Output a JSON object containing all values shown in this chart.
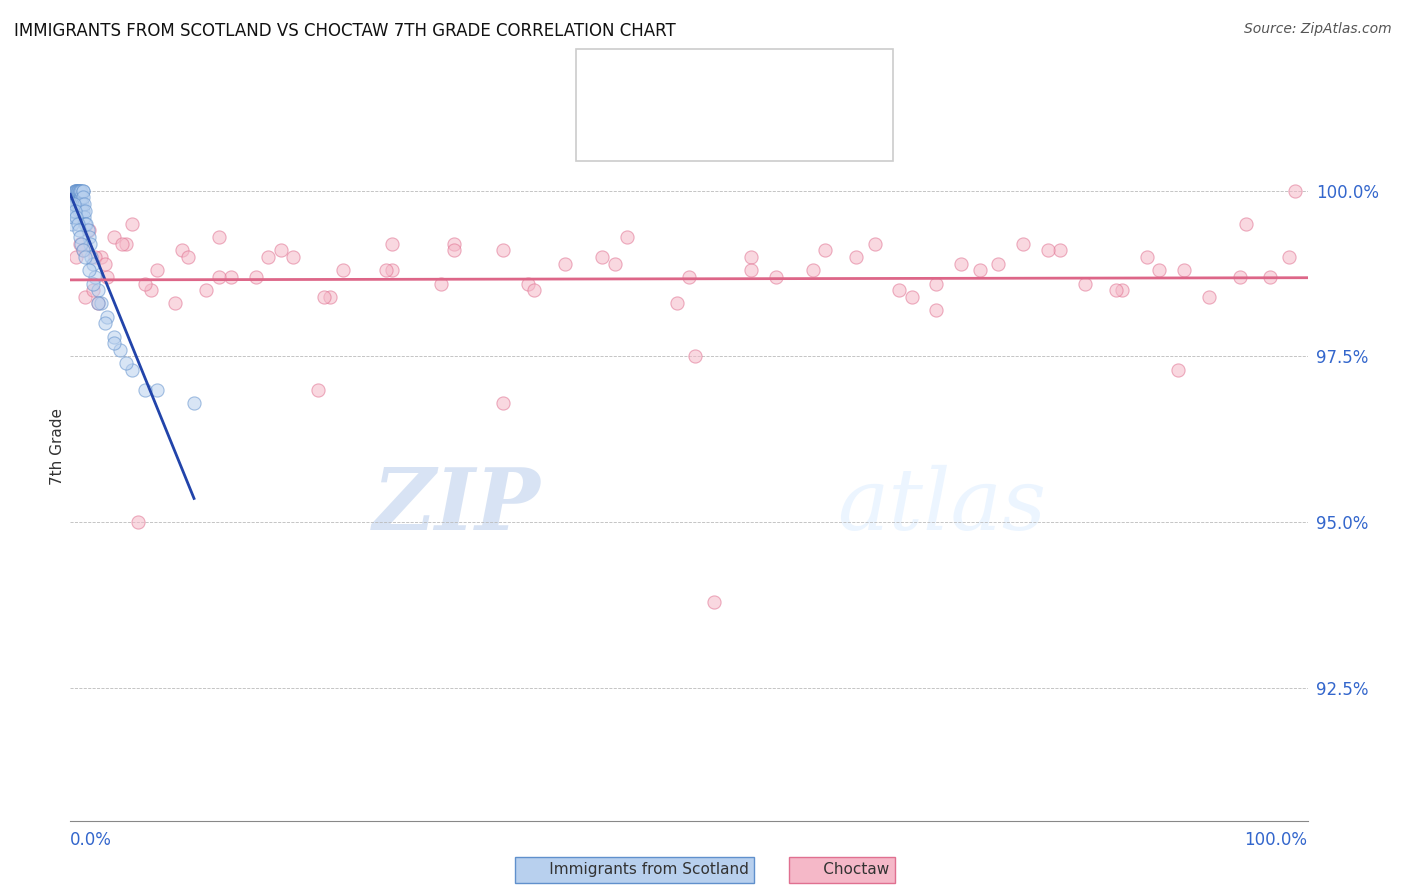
{
  "title": "IMMIGRANTS FROM SCOTLAND VS CHOCTAW 7TH GRADE CORRELATION CHART",
  "source_text": "Source: ZipAtlas.com",
  "ylabel": "7th Grade",
  "xmin": 0.0,
  "xmax": 100.0,
  "ymin": 90.5,
  "ymax": 101.8,
  "blue_color": "#b8d0ee",
  "blue_edge_color": "#6090cc",
  "pink_color": "#f5b8c8",
  "pink_edge_color": "#e07090",
  "blue_line_color": "#2244aa",
  "pink_line_color": "#dd6688",
  "ytick_vals": [
    92.5,
    95.0,
    97.5,
    100.0
  ],
  "watermark_zip": "ZIP",
  "watermark_atlas": "atlas",
  "blue_x": [
    0.15,
    0.2,
    0.25,
    0.3,
    0.35,
    0.35,
    0.4,
    0.4,
    0.45,
    0.5,
    0.5,
    0.55,
    0.6,
    0.6,
    0.65,
    0.7,
    0.7,
    0.75,
    0.8,
    0.8,
    0.85,
    0.9,
    0.9,
    0.95,
    1.0,
    1.0,
    1.0,
    1.0,
    1.1,
    1.1,
    1.2,
    1.2,
    1.3,
    1.4,
    1.5,
    1.6,
    1.7,
    1.8,
    2.0,
    2.2,
    2.5,
    3.0,
    3.5,
    4.0,
    5.0,
    7.0,
    10.0,
    0.3,
    0.4,
    0.5,
    0.6,
    0.7,
    0.8,
    0.9,
    1.0,
    1.2,
    1.5,
    1.8,
    2.2,
    2.8,
    3.5,
    4.5,
    6.0
  ],
  "blue_y": [
    99.5,
    99.6,
    99.7,
    99.8,
    100.0,
    99.9,
    100.0,
    99.8,
    100.0,
    100.0,
    99.9,
    100.0,
    100.0,
    99.8,
    100.0,
    100.0,
    99.7,
    100.0,
    100.0,
    99.8,
    99.9,
    100.0,
    99.7,
    99.8,
    100.0,
    100.0,
    99.9,
    99.7,
    99.8,
    99.6,
    99.7,
    99.5,
    99.5,
    99.4,
    99.3,
    99.2,
    99.0,
    98.9,
    98.7,
    98.5,
    98.3,
    98.1,
    97.8,
    97.6,
    97.3,
    97.0,
    96.8,
    99.8,
    99.7,
    99.6,
    99.5,
    99.4,
    99.3,
    99.2,
    99.1,
    99.0,
    98.8,
    98.6,
    98.3,
    98.0,
    97.7,
    97.4,
    97.0
  ],
  "pink_x": [
    0.8,
    1.5,
    2.5,
    3.5,
    5.0,
    7.0,
    9.0,
    12.0,
    15.0,
    18.0,
    22.0,
    26.0,
    30.0,
    35.0,
    40.0,
    45.0,
    50.0,
    55.0,
    60.0,
    65.0,
    70.0,
    75.0,
    80.0,
    85.0,
    90.0,
    95.0,
    99.0,
    1.2,
    2.0,
    3.0,
    4.5,
    6.5,
    9.5,
    13.0,
    17.0,
    21.0,
    26.0,
    31.0,
    37.0,
    43.0,
    49.0,
    55.0,
    61.0,
    67.0,
    72.0,
    77.0,
    82.0,
    87.0,
    92.0,
    97.0,
    1.0,
    1.8,
    2.8,
    4.2,
    6.0,
    8.5,
    12.0,
    16.0,
    20.5,
    25.5,
    31.0,
    37.5,
    44.0,
    50.5,
    57.0,
    63.5,
    68.0,
    73.5,
    79.0,
    84.5,
    89.5,
    94.5,
    98.5,
    0.5,
    2.2,
    5.5,
    11.0,
    20.0,
    35.0,
    52.0,
    70.0,
    88.0
  ],
  "pink_y": [
    99.2,
    99.4,
    99.0,
    99.3,
    99.5,
    98.8,
    99.1,
    99.3,
    98.7,
    99.0,
    98.8,
    99.2,
    98.6,
    99.1,
    98.9,
    99.3,
    98.7,
    99.0,
    98.8,
    99.2,
    98.6,
    98.9,
    99.1,
    98.5,
    98.8,
    99.5,
    100.0,
    98.4,
    99.0,
    98.7,
    99.2,
    98.5,
    99.0,
    98.7,
    99.1,
    98.4,
    98.8,
    99.2,
    98.6,
    99.0,
    98.3,
    98.8,
    99.1,
    98.5,
    98.9,
    99.2,
    98.6,
    99.0,
    98.4,
    98.7,
    99.1,
    98.5,
    98.9,
    99.2,
    98.6,
    98.3,
    98.7,
    99.0,
    98.4,
    98.8,
    99.1,
    98.5,
    98.9,
    97.5,
    98.7,
    99.0,
    98.4,
    98.8,
    99.1,
    98.5,
    97.3,
    98.7,
    99.0,
    99.0,
    98.3,
    95.0,
    98.5,
    97.0,
    96.8,
    93.8,
    98.2,
    98.8
  ],
  "marker_size": 90,
  "alpha": 0.55
}
